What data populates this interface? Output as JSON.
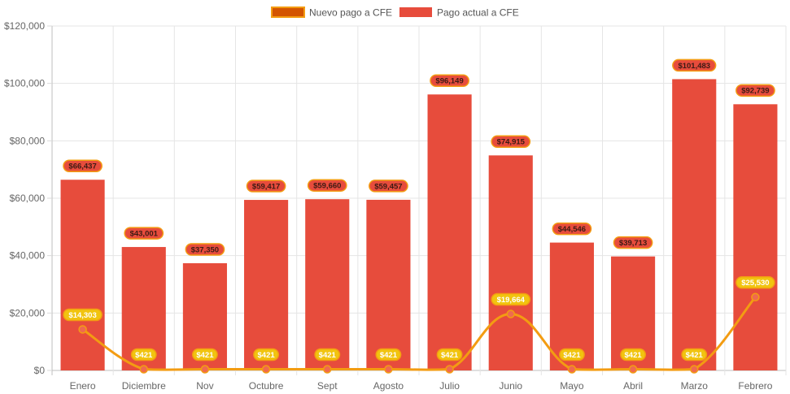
{
  "chart_data": {
    "type": "bar",
    "title": "",
    "xlabel": "",
    "ylabel": "",
    "ylim": [
      0,
      120000
    ],
    "y_ticks": [
      0,
      20000,
      40000,
      60000,
      80000,
      100000,
      120000
    ],
    "y_tick_labels": [
      "$0",
      "$20,000",
      "$40,000",
      "$60,000",
      "$80,000",
      "$100,000",
      "$120,000"
    ],
    "grid": true,
    "legend_position": "top-center",
    "categories": [
      "Enero",
      "Diciembre",
      "Nov",
      "Octubre",
      "Sept",
      "Agosto",
      "Julio",
      "Junio",
      "Mayo",
      "Abril",
      "Marzo",
      "Febrero"
    ],
    "series": [
      {
        "name": "Nuevo pago a CFE",
        "type": "line",
        "color": "#f39c12",
        "fill_color": "#d35400",
        "values": [
          14303,
          421,
          421,
          421,
          421,
          421,
          421,
          19664,
          421,
          421,
          421,
          25530
        ],
        "labels": [
          "$14,303",
          "$421",
          "$421",
          "$421",
          "$421",
          "$421",
          "$421",
          "$19,664",
          "$421",
          "$421",
          "$421",
          "$25,530"
        ]
      },
      {
        "name": "Pago actual a CFE",
        "type": "bar",
        "color": "#e74c3c",
        "values": [
          66437,
          43001,
          37350,
          59417,
          59660,
          59457,
          96149,
          74915,
          44546,
          39713,
          101483,
          92739
        ],
        "labels": [
          "$66,437",
          "$43,001",
          "$37,350",
          "$59,417",
          "$59,660",
          "$59,457",
          "$96,149",
          "$74,915",
          "$44,546",
          "$39,713",
          "$101,483",
          "$92,739"
        ]
      }
    ]
  }
}
